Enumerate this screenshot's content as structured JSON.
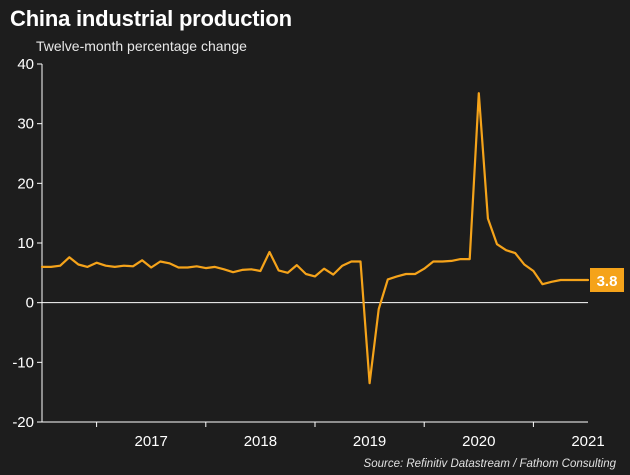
{
  "title": "China industrial production",
  "subtitle": "Twelve-month percentage change",
  "source": "Source: Refinitiv Datastream / Fathom Consulting",
  "colors": {
    "background": "#1d1d1d",
    "line": "#f5a31a",
    "axis": "#ffffff"
  },
  "chart_data": {
    "type": "line",
    "title": "China industrial production",
    "subtitle": "Twelve-month percentage change",
    "xlabel": "",
    "ylabel": "",
    "ylim": [
      -20,
      40
    ],
    "yticks": [
      40,
      30,
      20,
      10,
      0,
      -10,
      -20
    ],
    "xlim": [
      "2016-07",
      "2021-07"
    ],
    "xticks": [
      "2017",
      "2018",
      "2019",
      "2020",
      "2021"
    ],
    "grid": false,
    "legend": "none",
    "last_value_label": "3.8",
    "series": [
      {
        "name": "",
        "x": [
          "2016-07",
          "2016-08",
          "2016-09",
          "2016-10",
          "2016-11",
          "2016-12",
          "2017-01",
          "2017-02",
          "2017-03",
          "2017-04",
          "2017-05",
          "2017-06",
          "2017-07",
          "2017-08",
          "2017-09",
          "2017-10",
          "2017-11",
          "2017-12",
          "2018-01",
          "2018-02",
          "2018-03",
          "2018-04",
          "2018-05",
          "2018-06",
          "2018-07",
          "2018-08",
          "2018-09",
          "2018-10",
          "2018-11",
          "2018-12",
          "2019-01",
          "2019-02",
          "2019-03",
          "2019-04",
          "2019-05",
          "2019-06",
          "2019-07",
          "2019-08",
          "2019-09",
          "2019-10",
          "2019-11",
          "2019-12",
          "2020-01",
          "2020-02",
          "2020-03",
          "2020-04",
          "2020-05",
          "2020-06",
          "2020-07",
          "2020-08",
          "2020-09",
          "2020-10",
          "2020-11",
          "2020-12",
          "2021-01",
          "2021-02",
          "2021-03",
          "2021-04",
          "2021-05",
          "2021-06",
          "2021-07"
        ],
        "values": [
          6.0,
          6.0,
          6.2,
          7.6,
          6.4,
          6.0,
          6.7,
          6.2,
          6.0,
          6.2,
          6.1,
          7.1,
          5.9,
          6.9,
          6.6,
          5.9,
          5.9,
          6.1,
          5.8,
          6.0,
          5.6,
          5.1,
          5.5,
          5.6,
          5.3,
          8.5,
          5.4,
          5.0,
          6.3,
          4.8,
          4.4,
          5.7,
          4.7,
          6.2,
          6.9,
          6.9,
          -13.5,
          -1.1,
          3.9,
          4.4,
          4.8,
          4.8,
          5.7,
          6.9,
          6.9,
          7.0,
          7.3,
          7.3,
          35.1,
          14.1,
          9.8,
          8.8,
          8.3,
          6.4,
          5.3,
          3.1,
          3.5,
          3.8,
          3.8,
          3.8,
          3.8
        ]
      }
    ]
  }
}
